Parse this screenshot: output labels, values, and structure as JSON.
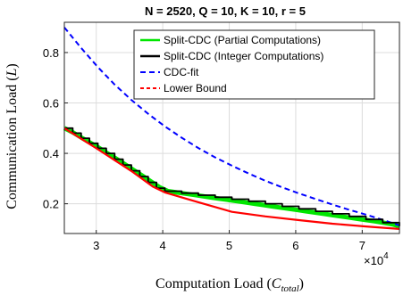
{
  "chart_data": {
    "type": "line",
    "title": "N = 2520, Q = 10, K = 10, r = 5",
    "xlabel_main": "Computation Load (",
    "xlabel_var": "C",
    "xlabel_sub": "total",
    "xlabel_close": ")",
    "ylabel_main": "Communication Load (",
    "ylabel_var": "L",
    "ylabel_close": ")",
    "x_multiplier_base": "×10",
    "x_multiplier_exp": "4",
    "xlim": [
      25200,
      75600
    ],
    "ylim": [
      0.082,
      0.92
    ],
    "xticks": [
      30000,
      40000,
      50000,
      60000,
      70000
    ],
    "xtick_labels": [
      "3",
      "4",
      "5",
      "6",
      "7"
    ],
    "yticks": [
      0.2,
      0.4,
      0.6,
      0.8
    ],
    "ytick_labels": [
      "0.2",
      "0.4",
      "0.6",
      "0.8"
    ],
    "grid": true,
    "legend_position": "top-right",
    "series": [
      {
        "name": "Split-CDC (Partial Computations)",
        "color": "#00e600",
        "style": "solid",
        "x": [
          25200,
          26500,
          27800,
          29100,
          30400,
          31700,
          33000,
          34300,
          35600,
          36900,
          38200,
          39500,
          40800,
          42100,
          43400,
          44700,
          46000,
          47300,
          48600,
          49900,
          51200,
          52500,
          53800,
          55100,
          56400,
          57700,
          59000,
          60300,
          61600,
          62900,
          64200,
          65500,
          66800,
          68100,
          69400,
          70700,
          72000,
          73300,
          74600,
          75600
        ],
        "y": [
          0.5,
          0.483,
          0.462,
          0.442,
          0.422,
          0.4,
          0.379,
          0.357,
          0.334,
          0.312,
          0.289,
          0.266,
          0.25,
          0.245,
          0.24,
          0.235,
          0.23,
          0.225,
          0.22,
          0.215,
          0.21,
          0.205,
          0.2,
          0.195,
          0.19,
          0.185,
          0.18,
          0.175,
          0.17,
          0.165,
          0.16,
          0.155,
          0.15,
          0.145,
          0.14,
          0.135,
          0.13,
          0.124,
          0.118,
          0.111
        ]
      },
      {
        "name": "Split-CDC (Integer Computations)",
        "color": "#000000",
        "style": "step",
        "x": [
          25200,
          26460,
          27720,
          28980,
          30240,
          31500,
          32760,
          34020,
          35280,
          36540,
          37800,
          39060,
          40320,
          42840,
          45360,
          47880,
          50400,
          52920,
          55440,
          57960,
          60480,
          63000,
          65520,
          68040,
          70560,
          73080,
          75600
        ],
        "y": [
          0.5,
          0.48,
          0.46,
          0.44,
          0.42,
          0.4,
          0.377,
          0.354,
          0.331,
          0.308,
          0.285,
          0.262,
          0.25,
          0.242,
          0.234,
          0.226,
          0.218,
          0.21,
          0.2,
          0.19,
          0.18,
          0.17,
          0.16,
          0.15,
          0.138,
          0.125,
          0.111
        ]
      },
      {
        "name": "CDC-fit",
        "color": "#0000ff",
        "style": "dashed",
        "x": [
          25200,
          27720,
          30240,
          32760,
          35280,
          37800,
          40320,
          42840,
          45360,
          47880,
          50400,
          52920,
          55440,
          57960,
          60480,
          63000,
          65520,
          68040,
          70560,
          73080,
          75600
        ],
        "y": [
          0.9,
          0.818,
          0.742,
          0.673,
          0.612,
          0.557,
          0.507,
          0.462,
          0.421,
          0.384,
          0.351,
          0.32,
          0.291,
          0.265,
          0.241,
          0.219,
          0.197,
          0.176,
          0.157,
          0.136,
          0.114
        ]
      },
      {
        "name": "Lower Bound",
        "color": "#ff0000",
        "style": "solid",
        "x": [
          25200,
          30240,
          35280,
          38500,
          40320,
          45360,
          50400,
          55440,
          60480,
          65520,
          70560,
          75600
        ],
        "y": [
          0.5,
          0.416,
          0.33,
          0.268,
          0.245,
          0.206,
          0.168,
          0.15,
          0.135,
          0.121,
          0.11,
          0.1
        ]
      }
    ]
  }
}
